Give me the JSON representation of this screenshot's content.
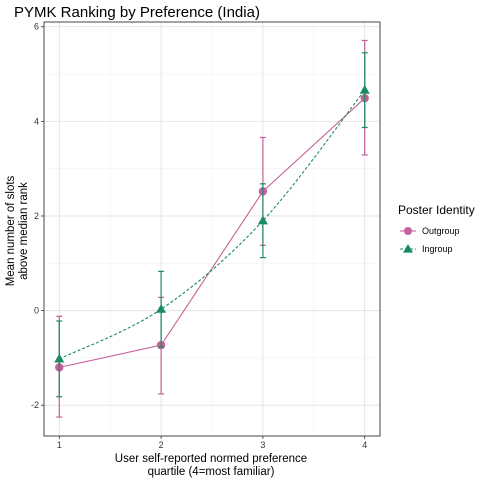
{
  "chart_data": {
    "type": "line",
    "title": "PYMK Ranking by Preference (India)",
    "xlabel": [
      "User self-reported normed preference",
      "quartile (4=most familiar)"
    ],
    "ylabel": [
      "Mean number of slots",
      "above median rank"
    ],
    "x": [
      1,
      2,
      3,
      4
    ],
    "xticks": [
      "1",
      "2",
      "3",
      "4"
    ],
    "xlim": [
      0.85,
      4.15
    ],
    "yticks": [
      "-2",
      "0",
      "2",
      "4",
      "6"
    ],
    "ylim": [
      -2.65,
      6.1
    ],
    "grid": true,
    "legend": {
      "title": "Poster Identity",
      "position": "right"
    },
    "series": [
      {
        "name": "Outgroup",
        "color": "#c5609a",
        "marker": "circle",
        "line": "solid",
        "values": [
          -1.2,
          -0.73,
          2.52,
          4.49
        ],
        "err_low": [
          -2.25,
          -1.76,
          1.38,
          3.29
        ],
        "err_high": [
          -0.12,
          0.28,
          3.66,
          5.71
        ]
      },
      {
        "name": "Ingroup",
        "color": "#1b8a66",
        "marker": "triangle",
        "line": "dashed",
        "values": [
          -1.02,
          0.03,
          1.9,
          4.66
        ],
        "err_low": [
          -1.82,
          -0.77,
          1.12,
          3.87
        ],
        "err_high": [
          -0.22,
          0.83,
          2.68,
          5.45
        ]
      }
    ]
  }
}
